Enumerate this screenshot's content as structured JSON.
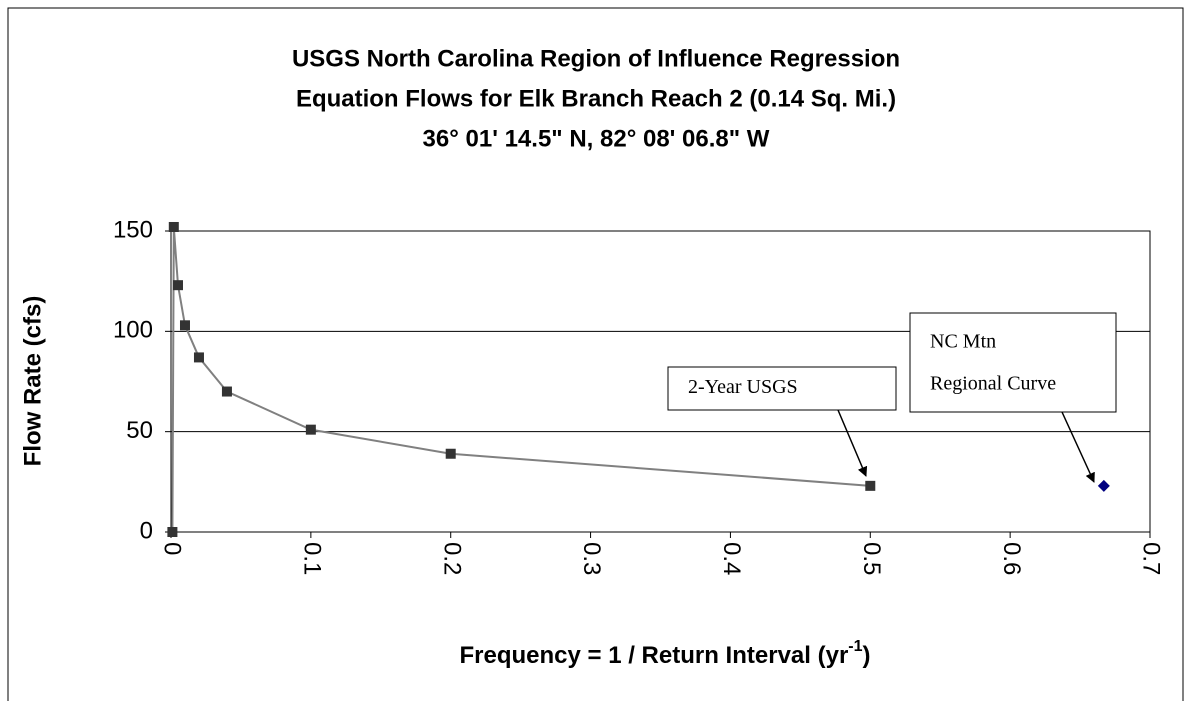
{
  "chart_data": {
    "type": "line",
    "title": [
      "USGS North Carolina Region of Influence Regression",
      "Equation Flows for Elk Branch Reach 2 (0.14 Sq. Mi.)",
      "36° 01' 14.5\" N, 82° 08' 06.8\" W"
    ],
    "xlabel": "Frequency = 1 / Return Interval (yr",
    "xlabel_sup": "-1",
    "xlabel_end": ")",
    "ylabel": "Flow Rate (cfs)",
    "series": [
      {
        "name": "USGS",
        "color": "#808080",
        "marker_color": "#333333",
        "marker": "square",
        "x": [
          0.001,
          0.002,
          0.005,
          0.01,
          0.02,
          0.04,
          0.1,
          0.2,
          0.5
        ],
        "values": [
          0,
          152,
          123,
          103,
          87,
          70,
          51,
          39,
          23
        ]
      },
      {
        "name": "NC Mtn Regional Curve",
        "color": "#000080",
        "marker": "diamond",
        "x": [
          0.667
        ],
        "values": [
          23
        ]
      }
    ],
    "xlim": [
      0,
      0.7
    ],
    "xticks": [
      0,
      0.1,
      0.2,
      0.3,
      0.4,
      0.5,
      0.6,
      0.7
    ],
    "ylim": [
      0,
      150
    ],
    "yticks": [
      0,
      50,
      100,
      150
    ],
    "grid": true,
    "annotations": [
      {
        "lines": [
          "2-Year USGS"
        ]
      },
      {
        "lines": [
          "NC Mtn",
          "Regional Curve"
        ]
      }
    ]
  }
}
